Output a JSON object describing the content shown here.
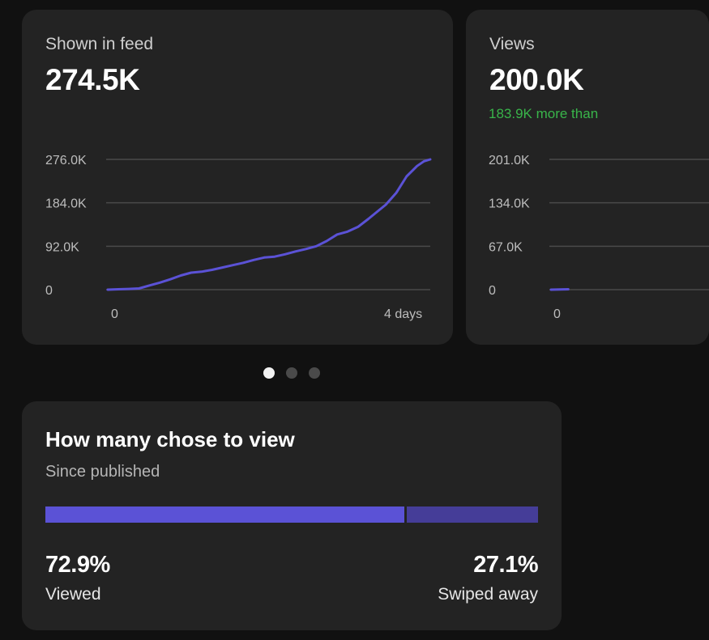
{
  "colors": {
    "background": "#111111",
    "card": "#232323",
    "accent": "#5b52d6",
    "accent_dark": "#453d98",
    "positive": "#39b54a",
    "line": "#5b52d6"
  },
  "cards": [
    {
      "title": "Shown in feed",
      "value": "274.5K",
      "note": ""
    },
    {
      "title": "Views",
      "value": "200.0K",
      "note": "183.9K more than"
    }
  ],
  "chart_data": [
    {
      "type": "line",
      "title": "Shown in feed",
      "yticks": [
        "276.0K",
        "184.0K",
        "92.0K",
        "0"
      ],
      "ylim": [
        0,
        276000
      ],
      "xticks": [
        "0",
        "4 days"
      ],
      "grid": true,
      "series": [
        {
          "x": [
            0,
            0.15,
            0.3,
            0.45,
            0.6,
            0.75,
            0.9,
            1.05,
            1.2,
            1.35,
            1.5,
            1.65,
            1.8,
            1.95,
            2.1,
            2.25,
            2.4,
            2.55,
            2.7,
            2.85,
            3.0,
            3.15,
            3.3,
            3.45,
            3.6,
            3.75,
            3.9,
            4.0,
            4.15,
            4.3,
            4.45,
            4.55,
            4.64
          ],
          "values": [
            0,
            800,
            1500,
            2500,
            9000,
            15000,
            22000,
            30000,
            36000,
            38000,
            42000,
            47000,
            52000,
            57000,
            63000,
            68000,
            70000,
            75000,
            81000,
            86000,
            92000,
            103000,
            117000,
            123000,
            133000,
            150000,
            168000,
            180000,
            205000,
            240000,
            262000,
            272000,
            276000
          ]
        }
      ]
    },
    {
      "type": "line",
      "title": "Views",
      "yticks": [
        "201.0K",
        "134.0K",
        "67.0K",
        "0"
      ],
      "ylim": [
        0,
        201000
      ],
      "xticks": [
        "0"
      ],
      "grid": true,
      "series": [
        {
          "x": [
            0,
            0.5
          ],
          "values": [
            0,
            600
          ]
        }
      ]
    }
  ],
  "dots": {
    "count": 3,
    "active": 0
  },
  "choice": {
    "title": "How many chose to view",
    "subtitle": "Since published",
    "viewed_fraction": 0.729,
    "viewed_pct": "72.9%",
    "viewed_label": "Viewed",
    "swiped_pct": "27.1%",
    "swiped_label": "Swiped away"
  }
}
